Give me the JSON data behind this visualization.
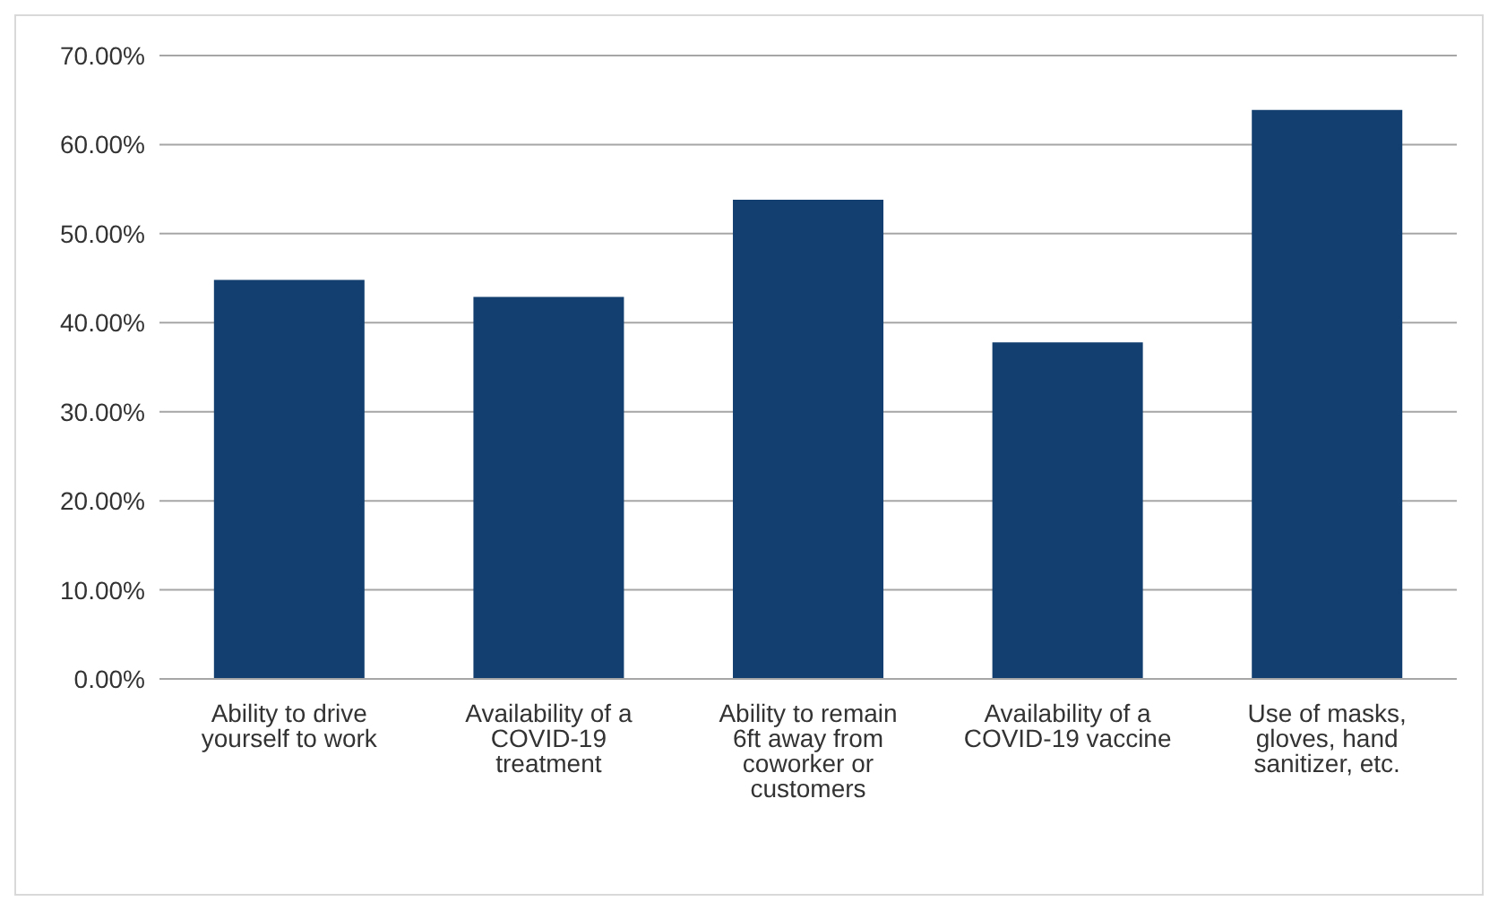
{
  "chart_data": {
    "type": "bar",
    "categories": [
      "Ability to drive yourself to work",
      "Availability of a COVID-19 treatment",
      "Ability to remain 6ft away from coworker or customers",
      "Availability of a COVID-19 vaccine",
      "Use of masks, gloves, hand sanitizer, etc."
    ],
    "values": [
      44.8,
      42.9,
      53.8,
      37.8,
      63.9
    ],
    "color": "#123f70",
    "ylim": [
      0,
      70
    ],
    "yticks": [
      {
        "value": 0,
        "label": "0.00%"
      },
      {
        "value": 10,
        "label": "10.00%"
      },
      {
        "value": 20,
        "label": "20.00%"
      },
      {
        "value": 30,
        "label": "30.00%"
      },
      {
        "value": 40,
        "label": "40.00%"
      },
      {
        "value": 50,
        "label": "50.00%"
      },
      {
        "value": 60,
        "label": "60.00%"
      },
      {
        "value": 70,
        "label": "70.00%"
      }
    ],
    "grid": "y",
    "legend": false
  }
}
